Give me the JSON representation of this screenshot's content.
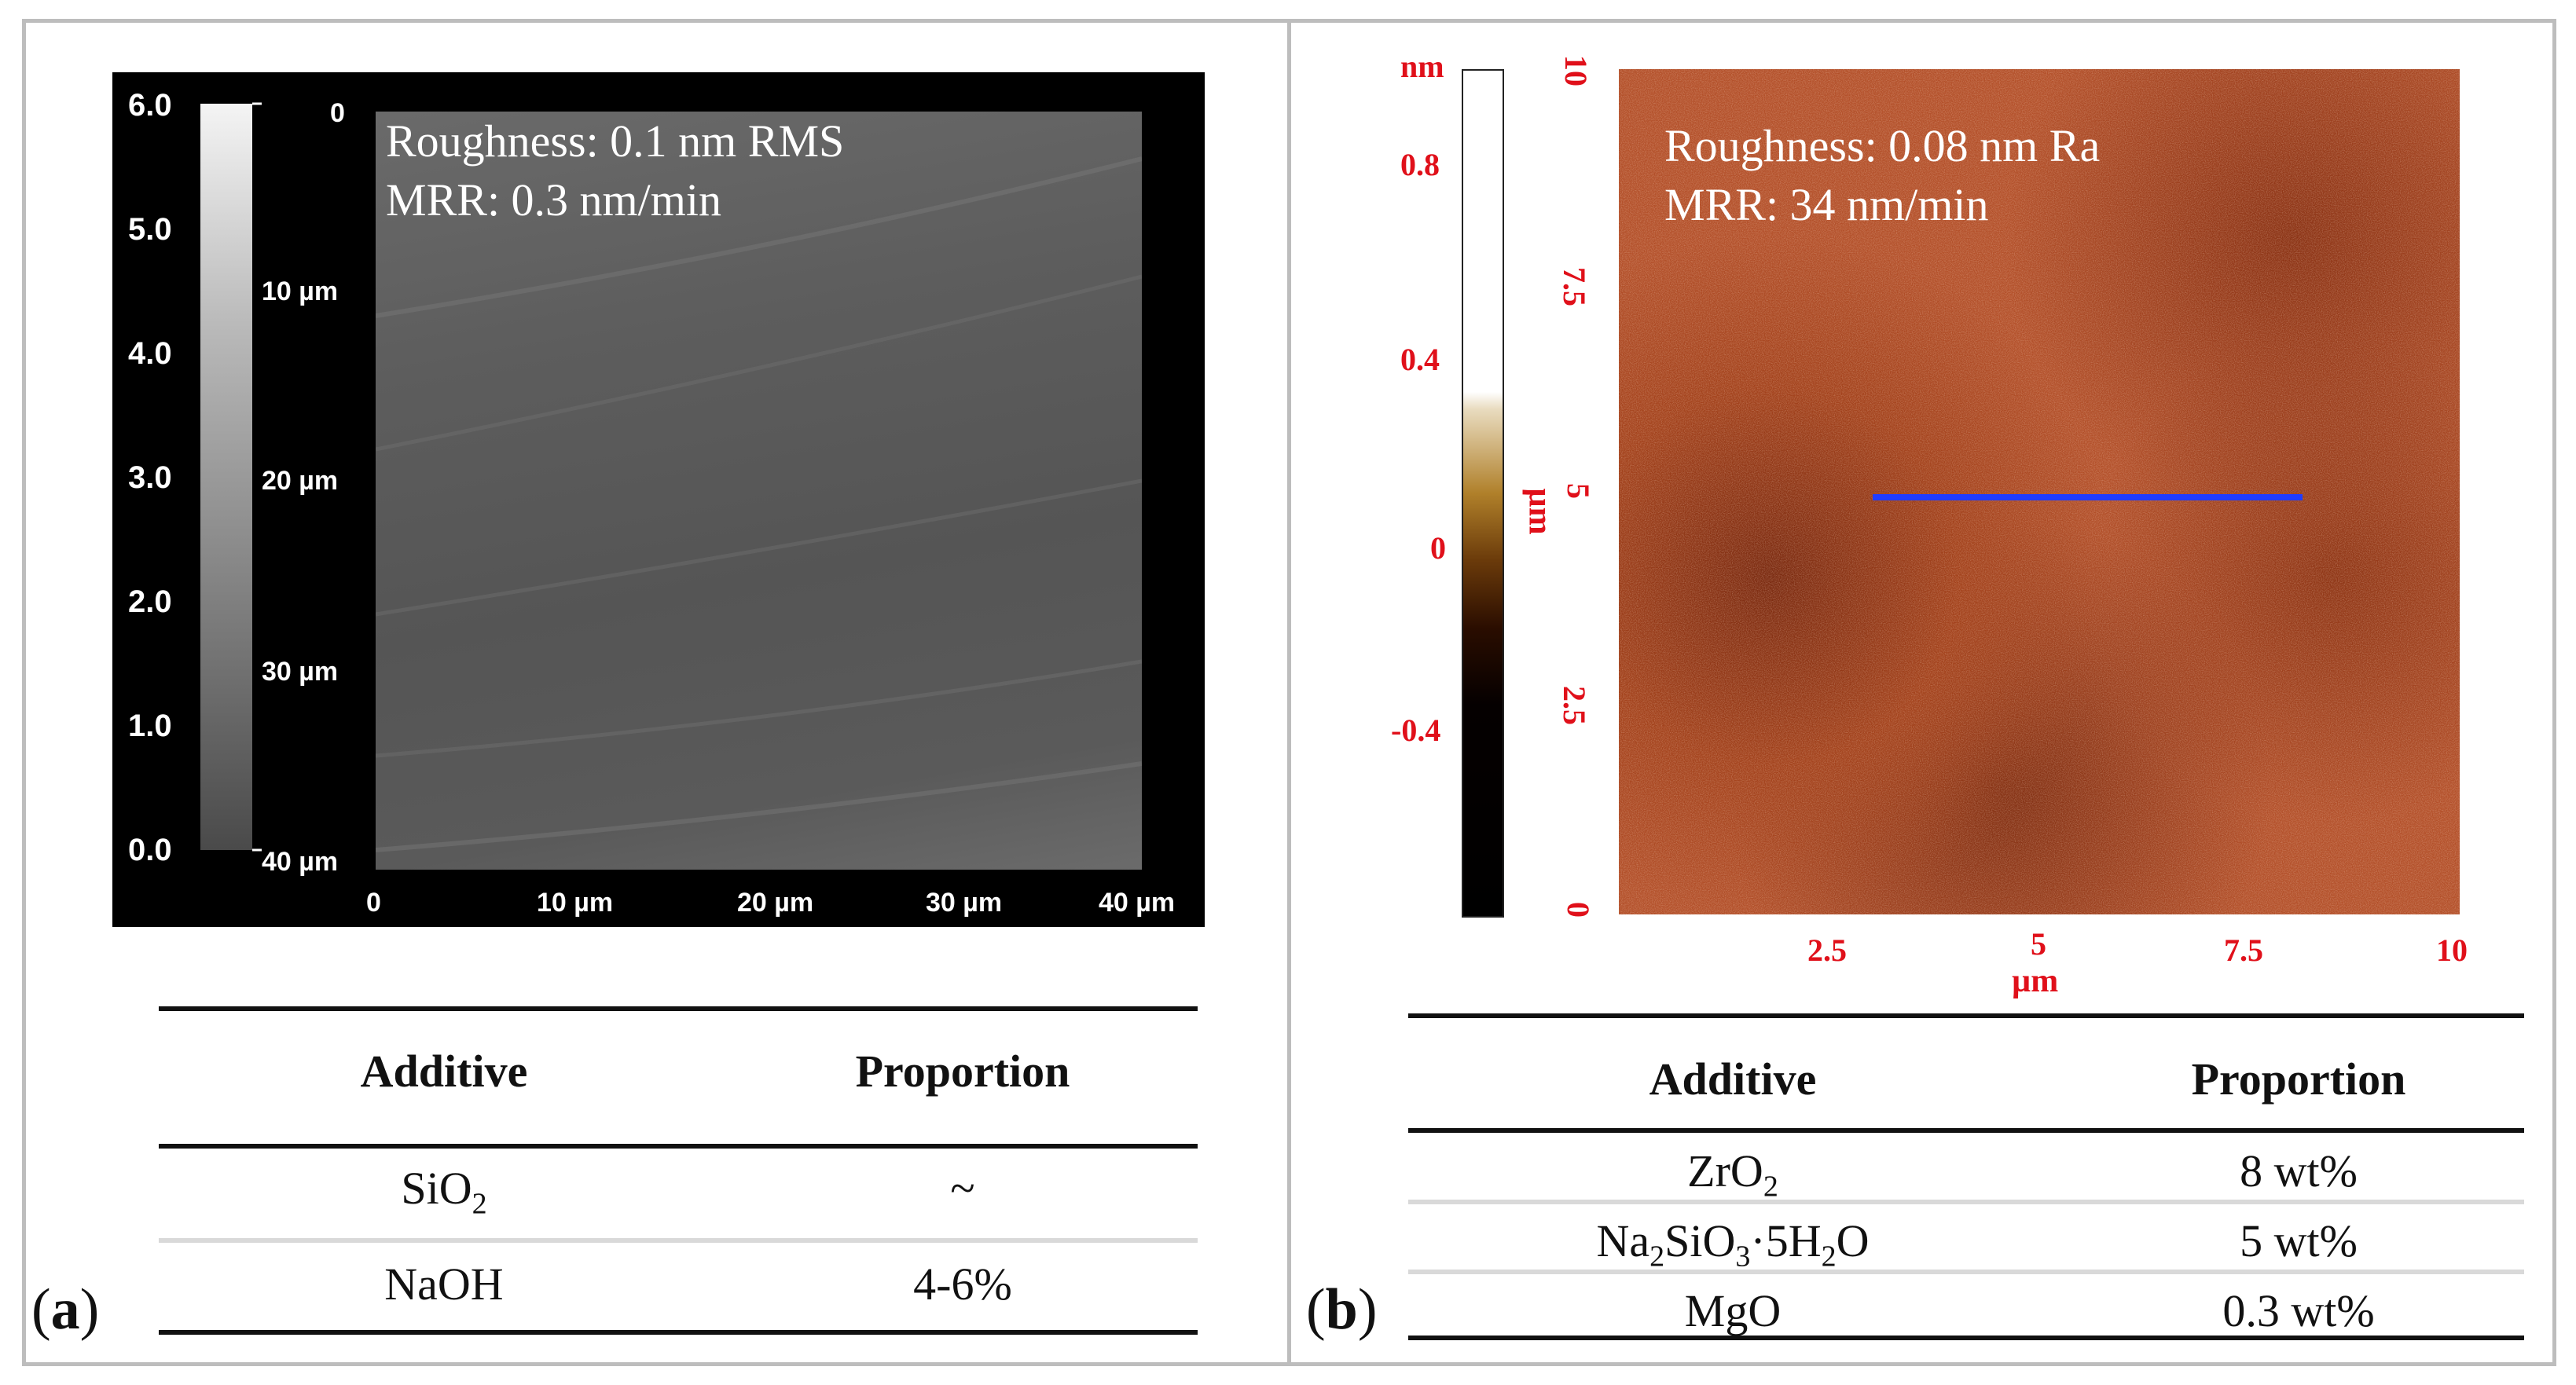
{
  "panel_a": {
    "label": "a",
    "colorbar_ticks": [
      "6.0",
      "5.0",
      "4.0",
      "3.0",
      "2.0",
      "1.0",
      "0.0"
    ],
    "y_ticks": [
      "0",
      "10 µm",
      "20 µm",
      "30 µm",
      "40 µm"
    ],
    "x_ticks": [
      "0",
      "10 µm",
      "20 µm",
      "30 µm",
      "40 µm"
    ],
    "overlay": {
      "roughness": "Roughness: 0.1 nm RMS",
      "mrr": "MRR: 0.3 nm/min"
    },
    "table": {
      "headers": [
        "Additive",
        "Proportion"
      ],
      "rows": [
        {
          "additive": "SiO2",
          "proportion": "~"
        },
        {
          "additive": "NaOH",
          "proportion": "4-6%"
        }
      ]
    }
  },
  "panel_b": {
    "label": "b",
    "colorbar_unit": "nm",
    "colorbar_ticks": [
      "0.8",
      "0.4",
      "0",
      "-0.4"
    ],
    "y_axis_label": "µm",
    "y_ticks": [
      "10",
      "7.5",
      "5",
      "2.5",
      "0"
    ],
    "x_ticks": [
      "2.5",
      "5",
      "7.5",
      "10"
    ],
    "x_axis_label": "µm",
    "overlay": {
      "roughness": "Roughness: 0.08 nm Ra",
      "mrr": "MRR: 34 nm/min"
    },
    "table": {
      "headers": [
        "Additive",
        "Proportion"
      ],
      "rows": [
        {
          "additive": "ZrO2",
          "proportion": "8 wt%"
        },
        {
          "additive": "Na2SiO3·5H2O",
          "proportion": "5 wt%"
        },
        {
          "additive": "MgO",
          "proportion": "0.3 wt%"
        }
      ]
    }
  },
  "colors": {
    "frame": "#bdbdbd",
    "axis_red": "#e0101a",
    "profile_line": "#1f3cff"
  }
}
